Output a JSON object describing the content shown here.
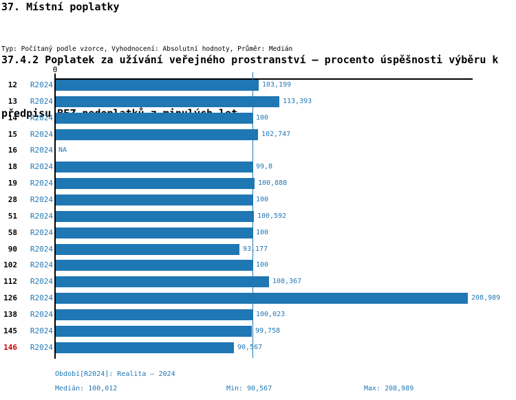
{
  "header": {
    "title": "37. Místní poplatky",
    "subtitle_lines": [
      "37.4.2 Poplatek za užívání veřejného prostranství – procento úspěšnosti výběru k",
      "předpisu BEZ nedoplatků z minulých let"
    ],
    "meta": "Typ: Počítaný podle vzorce, Vyhodnocení: Absolutní hodnoty, Průměr: Medián"
  },
  "chart_data": {
    "type": "bar",
    "orientation": "horizontal",
    "title": "37.4.2 Poplatek za užívání veřejného prostranství – procento úspěšnosti výběru k předpisu BEZ nedoplatků z minulých let",
    "x_axis": {
      "origin_label": "0",
      "min": 0,
      "max_visible": 211.4,
      "grid": false
    },
    "median_reference_line": 100.012,
    "series_period": "R2024",
    "rows": [
      {
        "id": "12",
        "period": "R2024",
        "value": 103.199,
        "label": "103,199"
      },
      {
        "id": "13",
        "period": "R2024",
        "value": 113.393,
        "label": "113,393"
      },
      {
        "id": "14",
        "period": "R2024",
        "value": 100,
        "label": "100"
      },
      {
        "id": "15",
        "period": "R2024",
        "value": 102.747,
        "label": "102,747"
      },
      {
        "id": "16",
        "period": "R2024",
        "value": null,
        "label": "NA"
      },
      {
        "id": "18",
        "period": "R2024",
        "value": 99.8,
        "label": "99,8"
      },
      {
        "id": "19",
        "period": "R2024",
        "value": 100.888,
        "label": "100,888"
      },
      {
        "id": "28",
        "period": "R2024",
        "value": 100,
        "label": "100"
      },
      {
        "id": "51",
        "period": "R2024",
        "value": 100.592,
        "label": "100,592"
      },
      {
        "id": "58",
        "period": "R2024",
        "value": 100,
        "label": "100"
      },
      {
        "id": "90",
        "period": "R2024",
        "value": 93.177,
        "label": "93,177"
      },
      {
        "id": "102",
        "period": "R2024",
        "value": 100,
        "label": "100"
      },
      {
        "id": "112",
        "period": "R2024",
        "value": 108.367,
        "label": "108,367"
      },
      {
        "id": "126",
        "period": "R2024",
        "value": 208.989,
        "label": "208,989"
      },
      {
        "id": "138",
        "period": "R2024",
        "value": 100.023,
        "label": "100,023"
      },
      {
        "id": "145",
        "period": "R2024",
        "value": 99.758,
        "label": "99,758"
      },
      {
        "id": "146",
        "period": "R2024",
        "value": 90.567,
        "label": "90,567",
        "id_alert": true
      }
    ]
  },
  "footer": {
    "period_info": "Období[R2024]: Realita – 2024",
    "median": "Medián: 100,012",
    "min": "Min: 90,567",
    "max": "Max: 208,989"
  },
  "colors": {
    "bar": "#1f77b4",
    "blue_text": "#1f77b4",
    "median_line": "#1f77b4",
    "alert_red": "#cc0000",
    "axis": "#000000"
  }
}
